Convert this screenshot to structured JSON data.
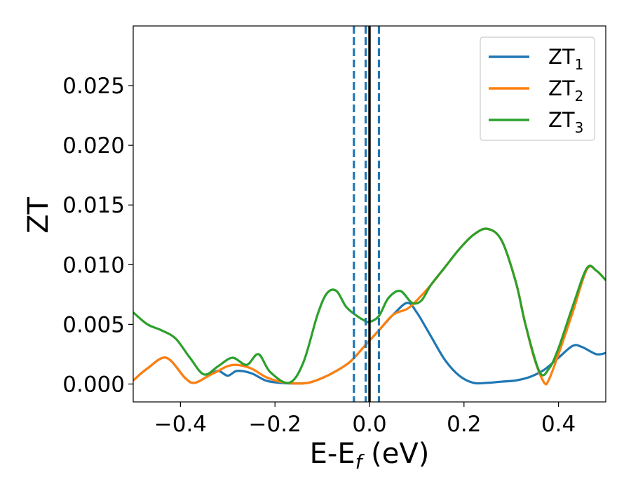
{
  "chart_data": {
    "type": "line",
    "xlabel": {
      "main": "E-E",
      "sub": "f",
      "suffix": " (eV)"
    },
    "ylabel": "ZT",
    "xlim": [
      -0.5,
      0.5
    ],
    "ylim": [
      -0.0015,
      0.03
    ],
    "x_ticks": [
      -0.4,
      -0.2,
      0.0,
      0.2,
      0.4
    ],
    "x_tick_labels": [
      "−0.4",
      "−0.2",
      "0.0",
      "0.2",
      "0.4"
    ],
    "y_ticks": [
      0.0,
      0.005,
      0.01,
      0.015,
      0.02,
      0.025
    ],
    "y_tick_labels": [
      "0.000",
      "0.005",
      "0.010",
      "0.015",
      "0.020",
      "0.025"
    ],
    "grid": false,
    "legend_position": "top-right",
    "vertical_lines": [
      {
        "x": 0.0,
        "style": "solid",
        "color": "#000000"
      },
      {
        "x": -0.033,
        "style": "dashed",
        "color": "#1f77b4"
      },
      {
        "x": -0.008,
        "style": "dashed",
        "color": "#1f77b4"
      },
      {
        "x": 0.02,
        "style": "dashed",
        "color": "#1f77b4"
      }
    ],
    "series": [
      {
        "name": "ZT",
        "subscript": "1",
        "color": "#1f77b4",
        "x": [
          -0.5,
          -0.47,
          -0.43,
          -0.39,
          -0.37,
          -0.34,
          -0.32,
          -0.3,
          -0.28,
          -0.25,
          -0.22,
          -0.19,
          -0.16,
          -0.13,
          -0.1,
          -0.07,
          -0.04,
          -0.01,
          0.02,
          0.05,
          0.08,
          0.1,
          0.13,
          0.16,
          0.19,
          0.22,
          0.25,
          0.28,
          0.31,
          0.34,
          0.37,
          0.4,
          0.43,
          0.45,
          0.48,
          0.5
        ],
        "y": [
          0.0003,
          0.0013,
          0.0022,
          0.0005,
          0.0001,
          0.0007,
          0.0011,
          0.0007,
          0.0011,
          0.0009,
          0.0003,
          0.0001,
          5e-05,
          0.0001,
          0.0005,
          0.0011,
          0.0019,
          0.0032,
          0.0045,
          0.0058,
          0.0068,
          0.006,
          0.004,
          0.002,
          0.0007,
          0.0001,
          0.0001,
          0.0002,
          0.0003,
          0.0006,
          0.0012,
          0.0022,
          0.0032,
          0.0031,
          0.0025,
          0.0026
        ]
      },
      {
        "name": "ZT",
        "subscript": "2",
        "color": "#ff7f0e",
        "x": [
          -0.5,
          -0.47,
          -0.43,
          -0.39,
          -0.37,
          -0.34,
          -0.32,
          -0.3,
          -0.28,
          -0.25,
          -0.22,
          -0.19,
          -0.16,
          -0.13,
          -0.1,
          -0.07,
          -0.04,
          -0.01,
          0.02,
          0.05,
          0.08,
          0.1,
          0.13,
          0.16,
          0.19,
          0.22,
          0.25,
          0.28,
          0.31,
          0.33,
          0.35,
          0.37,
          0.38,
          0.4,
          0.43,
          0.46,
          0.48,
          0.5
        ],
        "y": [
          0.0003,
          0.0013,
          0.0022,
          0.0005,
          0.0001,
          0.0007,
          0.0011,
          0.0015,
          0.0016,
          0.0013,
          0.0006,
          0.0002,
          5e-05,
          0.0001,
          0.0005,
          0.0011,
          0.0019,
          0.0032,
          0.0045,
          0.0058,
          0.0063,
          0.007,
          0.0083,
          0.0098,
          0.0113,
          0.0125,
          0.013,
          0.012,
          0.0085,
          0.005,
          0.002,
          0.0001,
          0.0004,
          0.0025,
          0.006,
          0.0096,
          0.0095,
          0.0087
        ]
      },
      {
        "name": "ZT",
        "subscript": "3",
        "color": "#2ca02c",
        "x": [
          -0.5,
          -0.47,
          -0.44,
          -0.41,
          -0.38,
          -0.35,
          -0.32,
          -0.29,
          -0.26,
          -0.235,
          -0.21,
          -0.17,
          -0.14,
          -0.11,
          -0.09,
          -0.07,
          -0.05,
          -0.03,
          -0.01,
          0.0,
          0.02,
          0.04,
          0.065,
          0.09,
          0.11,
          0.13,
          0.16,
          0.19,
          0.22,
          0.25,
          0.28,
          0.31,
          0.33,
          0.36,
          0.38,
          0.4,
          0.43,
          0.46,
          0.48,
          0.5
        ],
        "y": [
          0.006,
          0.005,
          0.0045,
          0.0038,
          0.0022,
          0.0008,
          0.0015,
          0.0022,
          0.0016,
          0.0025,
          0.001,
          0.0001,
          0.0018,
          0.0058,
          0.0076,
          0.0078,
          0.0065,
          0.0058,
          0.0053,
          0.0052,
          0.0057,
          0.0072,
          0.0078,
          0.0068,
          0.007,
          0.0083,
          0.0098,
          0.0113,
          0.0125,
          0.013,
          0.012,
          0.0085,
          0.005,
          0.001,
          0.0013,
          0.003,
          0.0065,
          0.0097,
          0.0095,
          0.0087
        ]
      }
    ]
  }
}
